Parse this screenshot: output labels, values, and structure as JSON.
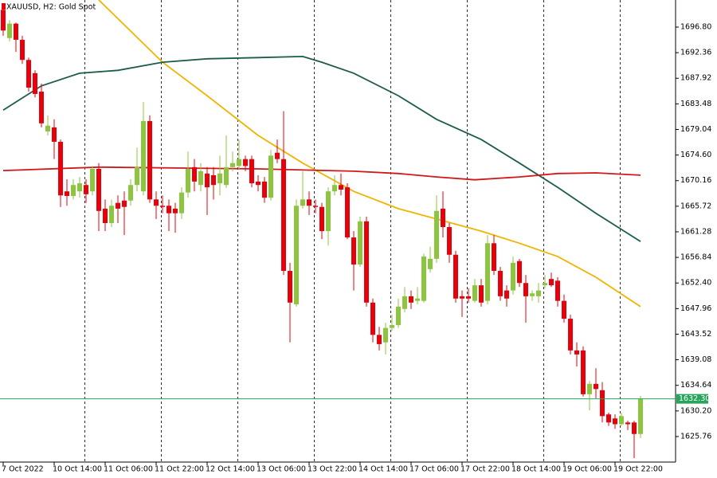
{
  "chart_data": {
    "type": "candlestick",
    "title": "XAUUSD, H2:  Gold Spot",
    "up_color": "#8cc63f",
    "down_color": "#e8000b",
    "candles": {
      "open": [
        1699.8,
        1694.9,
        1697.4,
        1694.6,
        1691.1,
        1688.8,
        1685.6,
        1678.7,
        1679.4,
        1676.9,
        1668.3,
        1667.5,
        1668.3,
        1669.4,
        1668.3,
        1672.2,
        1665.3,
        1662.8,
        1666.3,
        1666.7,
        1666.7,
        1669.4,
        1668.3,
        1680.5,
        1666.9,
        1665.8,
        1665.8,
        1665.3,
        1664.5,
        1668.1,
        1672.5,
        1669.4,
        1671.4,
        1671.1,
        1669.7,
        1669.4,
        1672.5,
        1672.7,
        1673.9,
        1673.9,
        1670.0,
        1670.0,
        1667.2,
        1675.0,
        1673.9,
        1654.5,
        1648.7,
        1665.8,
        1666.9,
        1665.8,
        1665.6,
        1661.4,
        1668.3,
        1669.4,
        1669.0,
        1660.3,
        1655.6,
        1663.1,
        1649.0,
        1643.4,
        1642.1,
        1644.6,
        1645.1,
        1647.9,
        1650.1,
        1649.3,
        1649.3,
        1654.8,
        1656.6,
        1665.3,
        1662.1,
        1657.3,
        1650.1,
        1650.1,
        1649.3,
        1652.0,
        1649.3,
        1659.3,
        1654.5,
        1651.1,
        1651.1,
        1656.2,
        1652.4,
        1650.1,
        1650.1,
        1652.0,
        1653.1,
        1652.8,
        1649.3,
        1646.2,
        1640.7,
        1640.7,
        1633.1,
        1634.9,
        1633.8,
        1629.6,
        1628.9,
        1627.9,
        1628.2,
        1628.2,
        1626.2
      ],
      "high": [
        1700.8,
        1698.0,
        1697.6,
        1695.3,
        1691.5,
        1689.3,
        1687.0,
        1681.5,
        1680.8,
        1677.3,
        1670.4,
        1670.4,
        1670.8,
        1670.4,
        1672.7,
        1673.2,
        1666.9,
        1666.9,
        1667.6,
        1668.3,
        1670.4,
        1675.9,
        1683.8,
        1681.5,
        1668.3,
        1667.6,
        1666.9,
        1666.3,
        1669.0,
        1675.2,
        1673.9,
        1673.2,
        1672.5,
        1672.5,
        1674.5,
        1678.0,
        1675.2,
        1677.3,
        1674.5,
        1674.5,
        1671.1,
        1670.8,
        1675.5,
        1677.3,
        1682.2,
        1655.9,
        1666.9,
        1671.8,
        1668.3,
        1666.9,
        1666.3,
        1669.0,
        1671.1,
        1671.4,
        1669.7,
        1661.4,
        1663.9,
        1663.9,
        1649.7,
        1644.8,
        1645.5,
        1646.9,
        1649.7,
        1651.7,
        1651.1,
        1651.7,
        1657.5,
        1658.7,
        1667.6,
        1668.3,
        1662.8,
        1658.0,
        1651.1,
        1651.5,
        1653.1,
        1653.1,
        1660.7,
        1660.7,
        1655.2,
        1652.0,
        1657.0,
        1656.6,
        1653.8,
        1651.1,
        1652.4,
        1653.8,
        1654.2,
        1653.4,
        1650.4,
        1646.9,
        1642.1,
        1641.4,
        1635.4,
        1637.6,
        1635.2,
        1629.9,
        1629.6,
        1629.9,
        1628.5,
        1628.5,
        1632.8
      ],
      "low": [
        1695.3,
        1694.3,
        1692.5,
        1690.4,
        1685.6,
        1684.6,
        1679.4,
        1678.0,
        1673.9,
        1665.6,
        1665.8,
        1666.9,
        1667.2,
        1666.3,
        1667.6,
        1661.4,
        1661.4,
        1662.1,
        1662.8,
        1660.7,
        1665.8,
        1668.3,
        1667.6,
        1666.3,
        1663.5,
        1664.5,
        1661.4,
        1661.1,
        1663.5,
        1667.2,
        1668.3,
        1668.3,
        1664.2,
        1666.9,
        1667.6,
        1668.9,
        1671.8,
        1672.2,
        1671.8,
        1669.0,
        1668.3,
        1666.3,
        1666.7,
        1673.2,
        1653.8,
        1642.1,
        1648.3,
        1665.3,
        1664.2,
        1664.5,
        1660.0,
        1658.9,
        1667.6,
        1667.6,
        1660.0,
        1651.1,
        1655.2,
        1648.3,
        1642.1,
        1640.7,
        1640.0,
        1644.1,
        1644.6,
        1647.3,
        1647.9,
        1648.7,
        1649.0,
        1654.2,
        1655.9,
        1660.3,
        1655.9,
        1649.0,
        1646.5,
        1649.0,
        1649.0,
        1648.3,
        1648.7,
        1653.8,
        1649.3,
        1648.3,
        1650.4,
        1651.7,
        1645.5,
        1649.3,
        1649.0,
        1651.5,
        1651.7,
        1648.3,
        1645.5,
        1640.0,
        1637.9,
        1632.7,
        1630.3,
        1632.4,
        1628.2,
        1627.6,
        1627.1,
        1627.6,
        1626.9,
        1622.0,
        1625.5
      ],
      "close": [
        1696.2,
        1697.4,
        1694.6,
        1691.1,
        1686.3,
        1685.2,
        1680.1,
        1679.7,
        1676.9,
        1667.6,
        1667.5,
        1669.4,
        1669.7,
        1667.8,
        1672.2,
        1664.9,
        1662.8,
        1665.8,
        1665.3,
        1665.6,
        1669.4,
        1672.5,
        1680.5,
        1666.9,
        1665.8,
        1665.6,
        1664.5,
        1664.5,
        1668.1,
        1672.2,
        1670.0,
        1671.8,
        1669.0,
        1669.4,
        1671.4,
        1672.5,
        1673.2,
        1673.9,
        1672.7,
        1669.7,
        1669.4,
        1667.2,
        1674.5,
        1673.9,
        1654.5,
        1649.0,
        1665.8,
        1666.9,
        1665.8,
        1665.6,
        1661.4,
        1668.3,
        1669.4,
        1668.6,
        1660.3,
        1655.6,
        1663.1,
        1649.0,
        1643.4,
        1641.8,
        1644.6,
        1645.1,
        1648.3,
        1650.1,
        1649.0,
        1649.7,
        1657.0,
        1656.6,
        1664.9,
        1662.1,
        1657.3,
        1649.7,
        1649.7,
        1649.7,
        1652.0,
        1649.0,
        1659.3,
        1654.5,
        1650.1,
        1649.7,
        1655.9,
        1652.4,
        1650.1,
        1650.6,
        1651.1,
        1652.4,
        1652.0,
        1649.3,
        1646.2,
        1640.7,
        1640.0,
        1633.1,
        1634.9,
        1634.0,
        1629.3,
        1628.2,
        1627.9,
        1629.3,
        1627.9,
        1626.2,
        1632.3
      ]
    },
    "series": [
      {
        "color": "#f0b400",
        "x": [
          15,
          25,
          32,
          40,
          47,
          55,
          62,
          68,
          75,
          81,
          87,
          93,
          100
        ],
        "values": [
          1701.5,
          1690.7,
          1684.9,
          1678.0,
          1673.2,
          1668.3,
          1665.3,
          1663.5,
          1661.4,
          1659.3,
          1657.0,
          1653.4,
          1648.3
        ]
      },
      {
        "color": "#1c5c4e",
        "x": [
          0,
          6,
          12,
          18,
          25,
          32,
          40,
          47,
          50,
          55,
          62,
          68,
          75,
          81,
          87,
          93,
          100
        ],
        "values": [
          1682.4,
          1686.6,
          1688.8,
          1689.3,
          1690.7,
          1691.3,
          1691.5,
          1691.7,
          1690.7,
          1688.8,
          1684.9,
          1680.8,
          1677.3,
          1673.2,
          1669.0,
          1664.5,
          1659.6
        ]
      },
      {
        "color": "#d01818",
        "x": [
          0,
          15,
          40,
          55,
          62,
          68,
          74,
          81,
          87,
          93,
          100
        ],
        "values": [
          1671.9,
          1672.5,
          1672.2,
          1671.8,
          1671.4,
          1670.8,
          1670.3,
          1670.8,
          1671.4,
          1671.5,
          1671.1
        ]
      }
    ],
    "bid": {
      "value": 1632.3,
      "label": "1632.30"
    },
    "bid_color": "#26a65b",
    "xlim": [
      -0.5,
      105.5
    ],
    "xticks": [
      {
        "value": 0,
        "label": "7 Oct 2022"
      },
      {
        "value": 8,
        "label": "10 Oct 14:00"
      },
      {
        "value": 16,
        "label": "11 Oct 06:00"
      },
      {
        "value": 24,
        "label": "11 Oct 22:00"
      },
      {
        "value": 32,
        "label": "12 Oct 14:00"
      },
      {
        "value": 40,
        "label": "13 Oct 06:00"
      },
      {
        "value": 48,
        "label": "13 Oct 22:00"
      },
      {
        "value": 56,
        "label": "14 Oct 14:00"
      },
      {
        "value": 64,
        "label": "17 Oct 06:00"
      },
      {
        "value": 72,
        "label": "17 Oct 22:00"
      },
      {
        "value": 80,
        "label": "18 Oct 14:00"
      },
      {
        "value": 88,
        "label": "19 Oct 06:00"
      },
      {
        "value": 96,
        "label": "19 Oct 22:00"
      }
    ],
    "xgrid": [
      12.75,
      24.75,
      36.75,
      48.75,
      60.75,
      72.75,
      84.75,
      96.75
    ],
    "ylim": [
      1621.33,
      1701.5
    ],
    "yticks": [
      {
        "value": 1696.8,
        "label": "1696.80"
      },
      1692.36,
      1687.92,
      1683.48,
      1679.04,
      {
        "value": 1674.6,
        "label": "1674.60"
      },
      1670.16,
      1665.72,
      1661.28,
      1656.84,
      {
        "value": 1652.4,
        "label": "1652.40"
      },
      1647.96,
      1643.52,
      1639.08,
      1634.64,
      {
        "value": 1630.2,
        "label": "1630.20"
      },
      1625.76
    ]
  }
}
